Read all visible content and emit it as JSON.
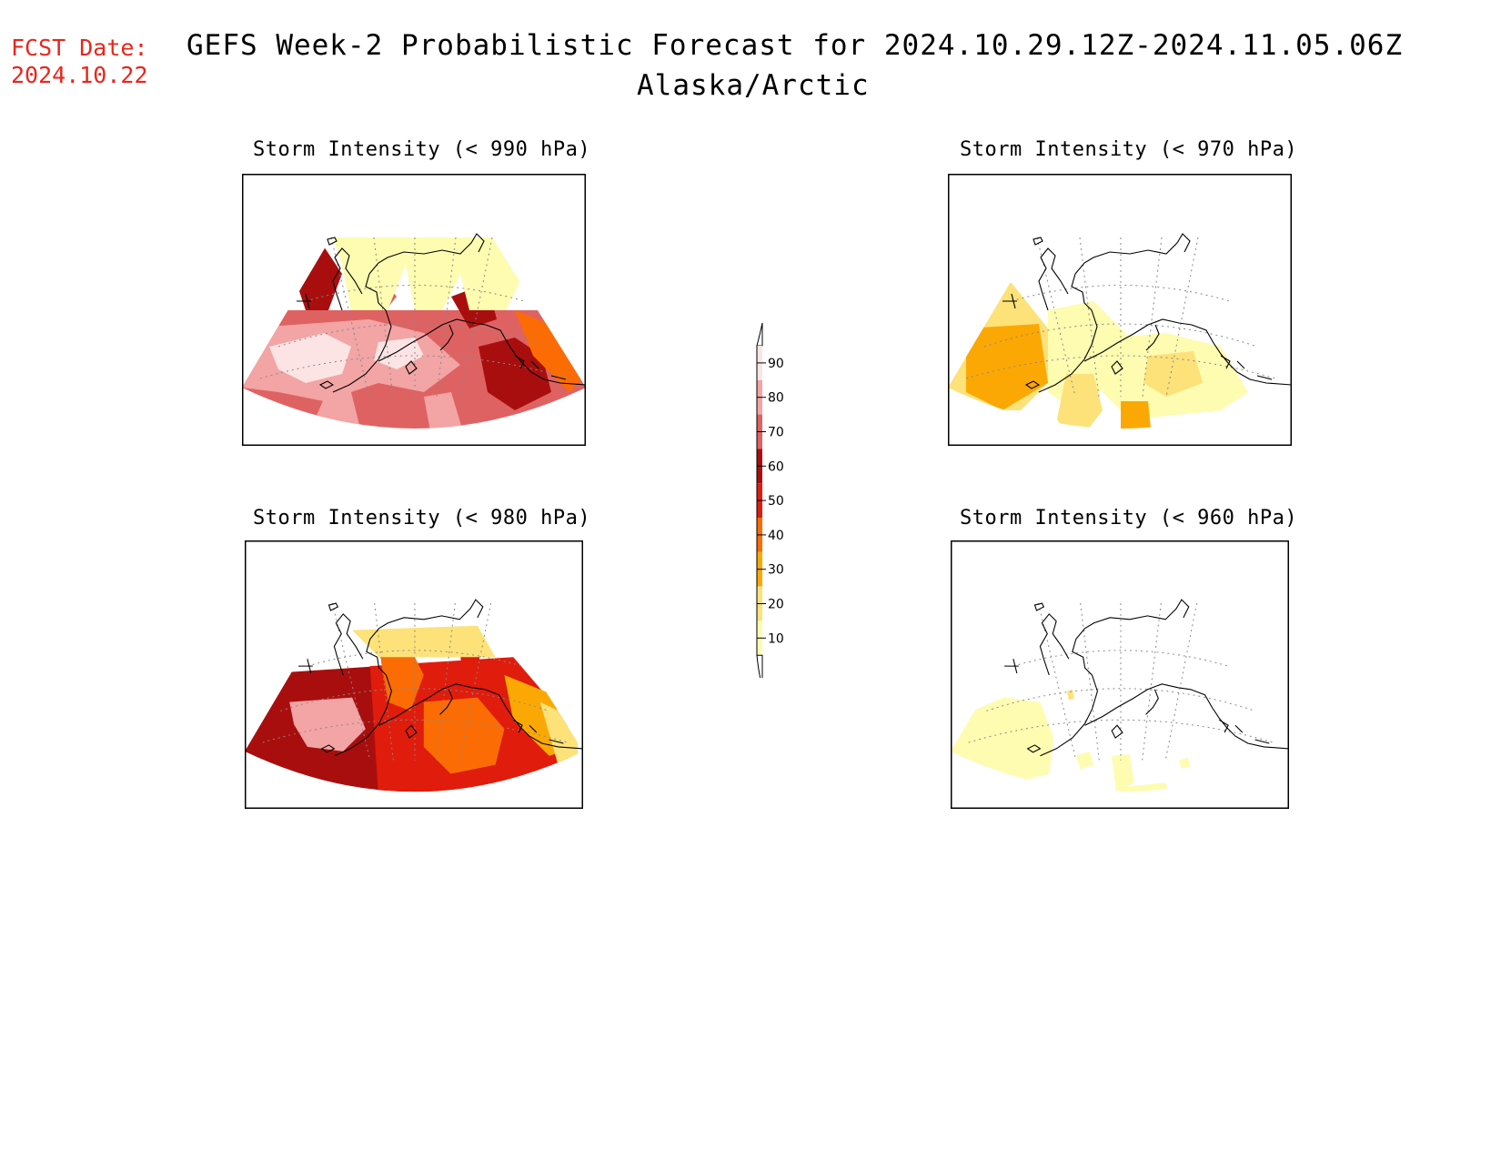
{
  "header": {
    "fcst_label": "FCST Date:",
    "fcst_date": "2024.10.22",
    "title": "GEFS Week-2 Probabilistic Forecast for 2024.10.29.12Z-2024.11.05.06Z",
    "region": "Alaska/Arctic"
  },
  "panels": [
    {
      "id": "p990",
      "title": "Storm Intensity (< 990 hPa)",
      "level": "high"
    },
    {
      "id": "p970",
      "title": "Storm Intensity (< 970 hPa)",
      "level": "low"
    },
    {
      "id": "p980",
      "title": "Storm Intensity (< 980 hPa)",
      "level": "mid"
    },
    {
      "id": "p960",
      "title": "Storm Intensity (< 960 hPa)",
      "level": "verylow"
    }
  ],
  "legend": {
    "labels": [
      "90",
      "80",
      "70",
      "60",
      "50",
      "40",
      "30",
      "20",
      "10"
    ],
    "colors": [
      "#fde4e4",
      "#f3a4a4",
      "#df6262",
      "#a90e0e",
      "#e01c0c",
      "#fc6c04",
      "#fca804",
      "#fde27a",
      "#fdfcb0"
    ]
  }
}
